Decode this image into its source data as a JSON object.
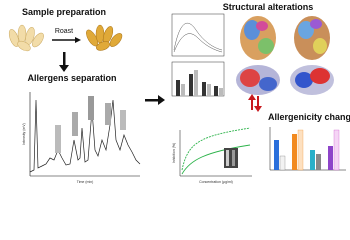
{
  "sample_preparation": {
    "title": "Sample preparation",
    "action": "Roast"
  },
  "allergens_separation": {
    "title": "Allergens separation",
    "x_label": "Time (min)",
    "y_label": "Intensity (mV)"
  },
  "structural_alterations": {
    "title": "Structural alterations"
  },
  "allergenicity_changes": {
    "title": "Allergenicity changes",
    "x_label": "Concentration (μg/ml)",
    "y_label": "Inhibition (%)"
  }
}
